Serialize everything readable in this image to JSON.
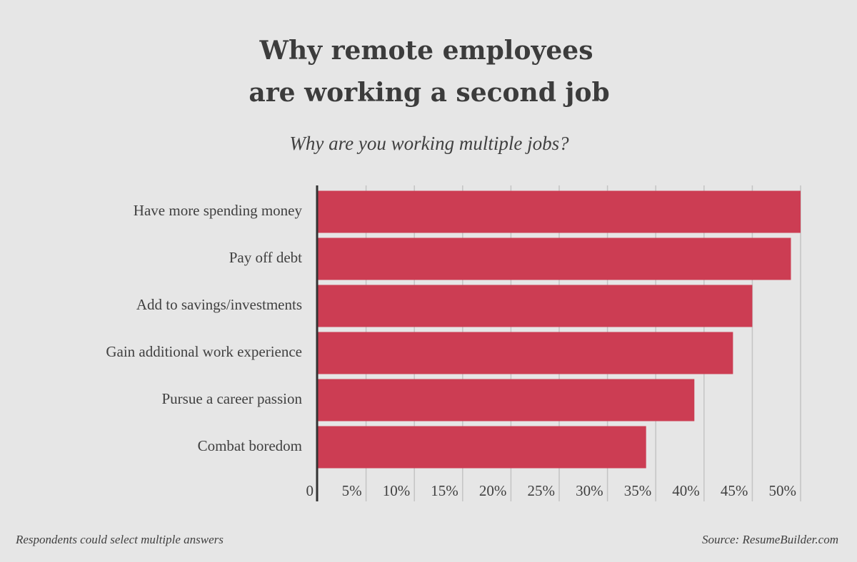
{
  "chart_data": {
    "type": "bar",
    "orientation": "horizontal",
    "title": [
      "Why remote employees",
      "are working a second job"
    ],
    "subtitle": "Why are you working multiple jobs?",
    "categories": [
      "Have more spending money",
      "Pay off debt",
      "Add to savings/investments",
      "Gain additional work experience",
      "Pursue a career passion",
      "Combat boredom"
    ],
    "values": [
      50,
      49,
      45,
      43,
      39,
      34
    ],
    "color": "#cc3d53",
    "xlim": [
      0,
      50
    ],
    "xticks": [
      0,
      {
        "value": 5,
        "label": "5%"
      },
      {
        "value": 10,
        "label": "10%"
      },
      {
        "value": 15,
        "label": "15%"
      },
      {
        "value": 20,
        "label": "20%"
      },
      {
        "value": 25,
        "label": "25%"
      },
      {
        "value": 30,
        "label": "30%"
      },
      {
        "value": 35,
        "label": "35%"
      },
      {
        "value": 40,
        "label": "40%"
      },
      {
        "value": 45,
        "label": "45%"
      },
      {
        "value": 50,
        "label": "50%"
      }
    ],
    "grid": true,
    "footnote": "Respondents could select multiple answers",
    "source": "Source: ResumeBuilder.com"
  }
}
